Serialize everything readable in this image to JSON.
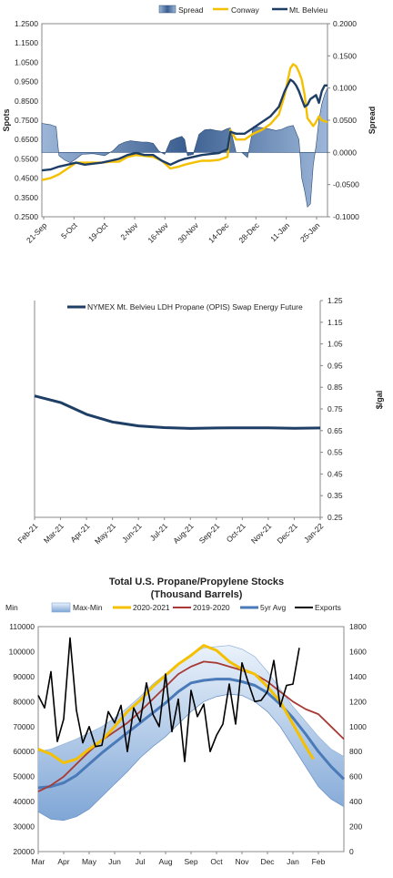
{
  "chart_data": [
    {
      "type": "line",
      "legend": [
        "Spread",
        "Conway",
        "Mt. Belvieu"
      ],
      "legend_position": "top-right",
      "ylabel": "Spots",
      "y2label": "Spread",
      "ylim": [
        0.25,
        1.25
      ],
      "y2lim": [
        -0.1,
        0.2
      ],
      "y_ticks": [
        "1.2500",
        "1.1500",
        "1.0500",
        "0.9500",
        "0.8500",
        "0.7500",
        "0.6500",
        "0.5500",
        "0.4500",
        "0.3500",
        "0.2500"
      ],
      "y2_ticks": [
        "0.2000",
        "0.1500",
        "0.1000",
        "0.0500",
        "0.0000",
        "-0.0500",
        "-0.1000"
      ],
      "x_ticks": [
        "21-Sep",
        "5-Oct",
        "19-Oct",
        "2-Nov",
        "16-Nov",
        "30-Nov",
        "14-Dec",
        "28-Dec",
        "11-Jan",
        "25-Jan"
      ],
      "x_range": [
        0,
        100
      ],
      "series": [
        {
          "name": "Spread",
          "kind": "area",
          "color": "#3b5f91",
          "x": [
            0,
            3,
            5,
            6,
            8,
            10,
            12,
            14,
            18,
            22,
            25,
            27,
            29,
            31,
            33,
            35,
            37,
            39,
            41,
            43,
            45,
            47,
            49,
            50,
            51,
            53,
            55,
            57,
            59,
            61,
            63,
            65,
            66,
            68,
            70,
            72,
            74,
            76,
            78,
            80,
            82,
            84,
            86,
            88,
            90,
            91,
            92,
            93,
            94,
            95,
            96,
            97,
            98,
            99,
            100
          ],
          "y": [
            0.045,
            0.043,
            0.04,
            -0.005,
            -0.012,
            -0.016,
            -0.01,
            -0.003,
            -0.002,
            -0.005,
            0.003,
            0.012,
            0.016,
            0.018,
            0.017,
            0.016,
            0.016,
            0.014,
            0.002,
            -0.003,
            0.018,
            0.022,
            0.025,
            0.02,
            -0.005,
            -0.003,
            0.028,
            0.035,
            0.036,
            0.034,
            0.033,
            0.037,
            0.038,
            0.0,
            0.0,
            -0.008,
            0.04,
            0.039,
            0.038,
            0.036,
            0.034,
            0.036,
            0.04,
            0.042,
            0.02,
            -0.04,
            -0.06,
            -0.085,
            -0.08,
            -0.02,
            0.01,
            0.05,
            0.075,
            0.09,
            0.1
          ]
        },
        {
          "name": "Conway",
          "kind": "line",
          "color": "#f5c000",
          "x": [
            0,
            3,
            6,
            9,
            12,
            15,
            18,
            21,
            24,
            27,
            30,
            33,
            36,
            39,
            42,
            45,
            48,
            50,
            53,
            56,
            59,
            62,
            65,
            66,
            68,
            71,
            74,
            77,
            80,
            83,
            85,
            87,
            88,
            89,
            90,
            91,
            92,
            93,
            94,
            95,
            96,
            97,
            98,
            100
          ],
          "y": [
            0.44,
            0.45,
            0.47,
            0.5,
            0.53,
            0.53,
            0.53,
            0.53,
            0.535,
            0.535,
            0.56,
            0.57,
            0.565,
            0.56,
            0.54,
            0.5,
            0.51,
            0.52,
            0.53,
            0.54,
            0.54,
            0.545,
            0.56,
            0.7,
            0.65,
            0.65,
            0.68,
            0.7,
            0.73,
            0.78,
            0.88,
            1.02,
            1.04,
            1.03,
            1.0,
            0.96,
            0.88,
            0.76,
            0.74,
            0.72,
            0.74,
            0.77,
            0.75,
            0.74
          ]
        },
        {
          "name": "Mt. Belvieu",
          "kind": "line",
          "color": "#1f3e66",
          "x": [
            0,
            3,
            6,
            9,
            12,
            15,
            18,
            21,
            24,
            27,
            30,
            33,
            36,
            39,
            42,
            45,
            48,
            50,
            53,
            56,
            59,
            62,
            65,
            66,
            68,
            71,
            74,
            77,
            80,
            83,
            85,
            87,
            88,
            89,
            90,
            91,
            92,
            93,
            94,
            95,
            96,
            97,
            98,
            99,
            100
          ],
          "y": [
            0.49,
            0.495,
            0.51,
            0.52,
            0.53,
            0.52,
            0.525,
            0.53,
            0.54,
            0.55,
            0.57,
            0.58,
            0.57,
            0.57,
            0.54,
            0.52,
            0.54,
            0.55,
            0.56,
            0.57,
            0.575,
            0.58,
            0.6,
            0.69,
            0.68,
            0.68,
            0.71,
            0.74,
            0.77,
            0.82,
            0.9,
            0.96,
            0.95,
            0.93,
            0.9,
            0.86,
            0.82,
            0.83,
            0.86,
            0.87,
            0.88,
            0.84,
            0.9,
            0.93,
            0.93
          ]
        }
      ]
    },
    {
      "type": "line",
      "legend": [
        "NYMEX Mt. Belvieu LDH Propane (OPIS) Swap Energy Future"
      ],
      "legend_position": "top-left",
      "y2label": "$/gal",
      "y2lim": [
        0.25,
        1.25
      ],
      "y2_ticks": [
        "1.25",
        "1.15",
        "1.05",
        "0.95",
        "0.85",
        "0.75",
        "0.65",
        "0.55",
        "0.45",
        "0.35",
        "0.25"
      ],
      "categories": [
        "Feb-21",
        "Mar-21",
        "Apr-21",
        "May-21",
        "Jun-21",
        "Jul-21",
        "Aug-21",
        "Sep-21",
        "Oct-21",
        "Nov-21",
        "Dec-21",
        "Jan-22"
      ],
      "series": [
        {
          "name": "NYMEX Mt. Belvieu LDH Propane (OPIS) Swap Energy Future",
          "color": "#1f3e66",
          "values": [
            0.81,
            0.78,
            0.725,
            0.69,
            0.672,
            0.664,
            0.66,
            0.662,
            0.663,
            0.663,
            0.661,
            0.662
          ]
        }
      ]
    },
    {
      "type": "line",
      "title": "Total U.S. Propane/Propylene Stocks",
      "subtitle": "(Thousand Barrels)",
      "legend": [
        "Min",
        "Max-Min",
        "2020-2021",
        "2019-2020",
        "5yr Avg",
        "Exports"
      ],
      "legend_position": "top",
      "ylim": [
        20000,
        110000
      ],
      "y2lim": [
        0,
        1800
      ],
      "y_ticks": [
        "110000",
        "100000",
        "90000",
        "80000",
        "70000",
        "60000",
        "50000",
        "40000",
        "30000",
        "20000"
      ],
      "y2_ticks": [
        "1800",
        "1600",
        "1400",
        "1200",
        "1000",
        "800",
        "600",
        "400",
        "200",
        "0"
      ],
      "categories": [
        "Mar",
        "Apr",
        "May",
        "Jun",
        "Jul",
        "Aug",
        "Sep",
        "Oct",
        "Nov",
        "Dec",
        "Jan",
        "Feb"
      ],
      "x_range": [
        0,
        12
      ],
      "series": [
        {
          "name": "Min",
          "color": "#9ab8dc",
          "x": [
            0,
            0.5,
            1,
            1.5,
            2,
            2.5,
            3,
            3.5,
            4,
            4.5,
            5,
            5.5,
            6,
            6.5,
            7,
            7.5,
            8,
            8.5,
            9,
            9.5,
            10,
            10.5,
            11,
            11.5,
            12
          ],
          "values": [
            36000,
            33000,
            32500,
            34000,
            37000,
            42000,
            47000,
            52000,
            57500,
            62000,
            66000,
            71000,
            76000,
            80000,
            82000,
            83000,
            82500,
            80000,
            76000,
            70000,
            62000,
            54000,
            46000,
            41000,
            38000
          ]
        },
        {
          "name": "Max-Min",
          "color": "#bcd3ee",
          "x": [
            0,
            0.5,
            1,
            1.5,
            2,
            2.5,
            3,
            3.5,
            4,
            4.5,
            5,
            5.5,
            6,
            6.5,
            7,
            7.5,
            8,
            8.5,
            9,
            9.5,
            10,
            10.5,
            11,
            11.5,
            12
          ],
          "values": [
            60000,
            61000,
            63000,
            65000,
            67500,
            70000,
            73500,
            77500,
            82000,
            87000,
            91000,
            95000,
            99000,
            101500,
            102000,
            102500,
            101000,
            98000,
            92000,
            85000,
            78000,
            72000,
            66000,
            61000,
            58000
          ]
        },
        {
          "name": "2020-2021",
          "color": "#f5c000",
          "x": [
            0,
            0.5,
            1,
            1.5,
            2,
            2.5,
            3,
            3.5,
            4,
            4.5,
            5,
            5.5,
            6,
            6.5,
            7,
            7.5,
            8,
            8.5,
            9,
            9.5,
            10,
            10.5,
            10.8
          ],
          "values": [
            61000,
            59000,
            55500,
            57000,
            61000,
            64500,
            70000,
            76000,
            80500,
            86000,
            90500,
            95000,
            98500,
            102500,
            100500,
            96000,
            93000,
            91000,
            86000,
            80000,
            71000,
            62000,
            57000
          ]
        },
        {
          "name": "2019-2020",
          "color": "#a83a35",
          "x": [
            0,
            0.5,
            1,
            1.5,
            2,
            2.5,
            3,
            3.5,
            4,
            4.5,
            5,
            5.5,
            6,
            6.5,
            7,
            7.5,
            8,
            8.5,
            9,
            9.5,
            10,
            10.5,
            11,
            11.5,
            12
          ],
          "values": [
            44000,
            46500,
            50000,
            55000,
            60000,
            64500,
            68000,
            71500,
            76000,
            81000,
            86000,
            91000,
            94000,
            96000,
            95500,
            94000,
            92500,
            91000,
            88000,
            84000,
            80000,
            77000,
            75000,
            70000,
            65000
          ]
        },
        {
          "name": "5yr Avg",
          "color": "#4a7ab8",
          "x": [
            0,
            0.5,
            1,
            1.5,
            2,
            2.5,
            3,
            3.5,
            4,
            4.5,
            5,
            5.5,
            6,
            6.5,
            7,
            7.5,
            8,
            8.5,
            9,
            9.5,
            10,
            10.5,
            11,
            11.5,
            12
          ],
          "values": [
            45500,
            46000,
            47500,
            50500,
            55000,
            59500,
            63500,
            67500,
            71500,
            75500,
            79500,
            84000,
            87500,
            88500,
            89000,
            89000,
            88000,
            86500,
            83500,
            79000,
            73500,
            67000,
            60000,
            54000,
            49000
          ]
        },
        {
          "name": "Exports",
          "color": "#000000",
          "axis": "right",
          "x": [
            0,
            0.25,
            0.5,
            0.75,
            1,
            1.25,
            1.5,
            1.75,
            2,
            2.25,
            2.5,
            2.75,
            3,
            3.25,
            3.5,
            3.75,
            4,
            4.25,
            4.5,
            4.75,
            5,
            5.25,
            5.5,
            5.75,
            6,
            6.25,
            6.5,
            6.75,
            7,
            7.25,
            7.5,
            7.75,
            8,
            8.25,
            8.5,
            8.75,
            9,
            9.25,
            9.5,
            9.75,
            10,
            10.25
          ],
          "values": [
            1250,
            1150,
            1440,
            880,
            1060,
            1710,
            1130,
            870,
            1000,
            840,
            850,
            1120,
            1030,
            1170,
            800,
            1150,
            1040,
            1350,
            1100,
            1000,
            1420,
            960,
            1220,
            720,
            1290,
            1080,
            1180,
            800,
            930,
            1020,
            1340,
            1020,
            1510,
            1350,
            1200,
            1210,
            1280,
            1530,
            1160,
            1330,
            1340,
            1630
          ]
        }
      ]
    }
  ]
}
